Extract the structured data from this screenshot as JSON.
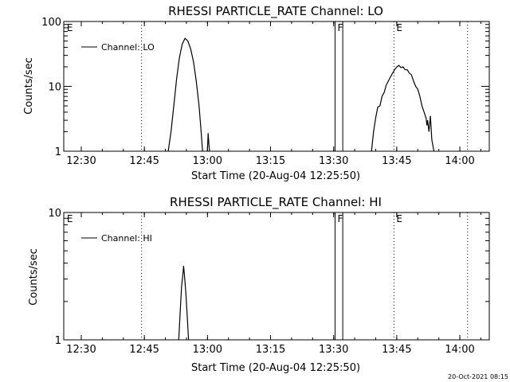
{
  "footer": {
    "timestamp": "20-Oct-2021 08:15"
  },
  "colors": {
    "foreground": "#000000",
    "background": "#ffffff"
  },
  "chart_data": [
    {
      "type": "line",
      "title": "RHESSI PARTICLE_RATE Channel: LO",
      "xlabel": "Start Time (20-Aug-04 12:25:50)",
      "ylabel": "Counts/sec",
      "xlim": [
        "12:25:50",
        "14:07:00"
      ],
      "ylim": [
        1,
        100
      ],
      "yscale": "log",
      "x_ticks": [
        "12:30",
        "12:45",
        "13:00",
        "13:15",
        "13:30",
        "13:45",
        "14:00"
      ],
      "y_ticks": [
        "1",
        "10",
        "100"
      ],
      "legend": {
        "entries": [
          "Channel: LO"
        ],
        "placement": "top-left"
      },
      "markers": [
        {
          "label": "E",
          "time": "12:26:00",
          "style": "none"
        },
        {
          "label": "",
          "time": "12:44:20",
          "style": "dotted"
        },
        {
          "label": "F",
          "time": "13:30:20",
          "style": "solid"
        },
        {
          "label": "",
          "time": "13:32:10",
          "style": "solid"
        },
        {
          "label": "E",
          "time": "13:44:20",
          "style": "dotted"
        },
        {
          "label": "",
          "time": "14:01:50",
          "style": "dotted"
        }
      ],
      "series": [
        {
          "name": "Channel: LO",
          "segments": [
            [
              [
                "12:50:40",
                1
              ],
              [
                "12:51:20",
                2
              ],
              [
                "12:52:00",
                5
              ],
              [
                "12:52:40",
                13
              ],
              [
                "12:53:20",
                28
              ],
              [
                "12:54:00",
                45
              ],
              [
                "12:54:40",
                55
              ],
              [
                "12:55:20",
                50
              ],
              [
                "12:56:00",
                38
              ],
              [
                "12:56:40",
                24
              ],
              [
                "12:57:20",
                12
              ],
              [
                "12:58:00",
                5
              ],
              [
                "12:58:30",
                2
              ],
              [
                "12:58:50",
                1
              ]
            ],
            [
              [
                "13:00:00",
                1
              ],
              [
                "13:00:10",
                1.9
              ],
              [
                "13:00:20",
                1.3
              ],
              [
                "13:00:30",
                1
              ]
            ],
            [
              [
                "13:39:00",
                1
              ],
              [
                "13:39:30",
                2
              ],
              [
                "13:40:00",
                3.3
              ],
              [
                "13:40:30",
                4.8
              ],
              [
                "13:41:00",
                5
              ],
              [
                "13:41:30",
                7
              ],
              [
                "13:42:00",
                8
              ],
              [
                "13:42:30",
                10.5
              ],
              [
                "13:43:00",
                12
              ],
              [
                "13:43:30",
                14
              ],
              [
                "13:44:00",
                16
              ],
              [
                "13:44:30",
                18
              ],
              [
                "13:45:00",
                20
              ],
              [
                "13:45:30",
                21
              ],
              [
                "13:46:00",
                19.5
              ],
              [
                "13:46:30",
                20
              ],
              [
                "13:47:00",
                18
              ],
              [
                "13:47:30",
                18
              ],
              [
                "13:48:00",
                16
              ],
              [
                "13:48:30",
                15
              ],
              [
                "13:49:00",
                12
              ],
              [
                "13:49:30",
                10
              ],
              [
                "13:50:00",
                9
              ],
              [
                "13:50:30",
                7
              ],
              [
                "13:51:00",
                5
              ],
              [
                "13:51:30",
                4
              ],
              [
                "13:52:00",
                3.2
              ],
              [
                "13:52:10",
                2.5
              ],
              [
                "13:52:20",
                3
              ],
              [
                "13:52:40",
                2
              ],
              [
                "13:53:00",
                3.5
              ],
              [
                "13:53:20",
                1.5
              ],
              [
                "13:53:50",
                1
              ]
            ]
          ]
        }
      ]
    },
    {
      "type": "line",
      "title": "RHESSI PARTICLE_RATE Channel: HI",
      "xlabel": "Start Time (20-Aug-04 12:25:50)",
      "ylabel": "Counts/sec",
      "xlim": [
        "12:25:50",
        "14:07:00"
      ],
      "ylim": [
        1,
        10
      ],
      "yscale": "log",
      "x_ticks": [
        "12:30",
        "12:45",
        "13:00",
        "13:15",
        "13:30",
        "13:45",
        "14:00"
      ],
      "y_ticks": [
        "1",
        "10"
      ],
      "legend": {
        "entries": [
          "Channel: HI"
        ],
        "placement": "top-left"
      },
      "markers": [
        {
          "label": "E",
          "time": "12:26:00",
          "style": "none"
        },
        {
          "label": "",
          "time": "12:44:20",
          "style": "dotted"
        },
        {
          "label": "F",
          "time": "13:30:20",
          "style": "solid"
        },
        {
          "label": "",
          "time": "13:32:10",
          "style": "solid"
        },
        {
          "label": "E",
          "time": "13:44:20",
          "style": "dotted"
        },
        {
          "label": "",
          "time": "14:01:50",
          "style": "dotted"
        }
      ],
      "series": [
        {
          "name": "Channel: HI",
          "segments": [
            [
              [
                "12:53:10",
                1
              ],
              [
                "12:53:30",
                1.6
              ],
              [
                "12:53:50",
                2.6
              ],
              [
                "12:54:10",
                3.3
              ],
              [
                "12:54:20",
                3.8
              ],
              [
                "12:54:30",
                3.3
              ],
              [
                "12:54:50",
                2.4
              ],
              [
                "12:55:10",
                1.6
              ],
              [
                "12:55:30",
                1
              ]
            ]
          ]
        }
      ]
    }
  ]
}
